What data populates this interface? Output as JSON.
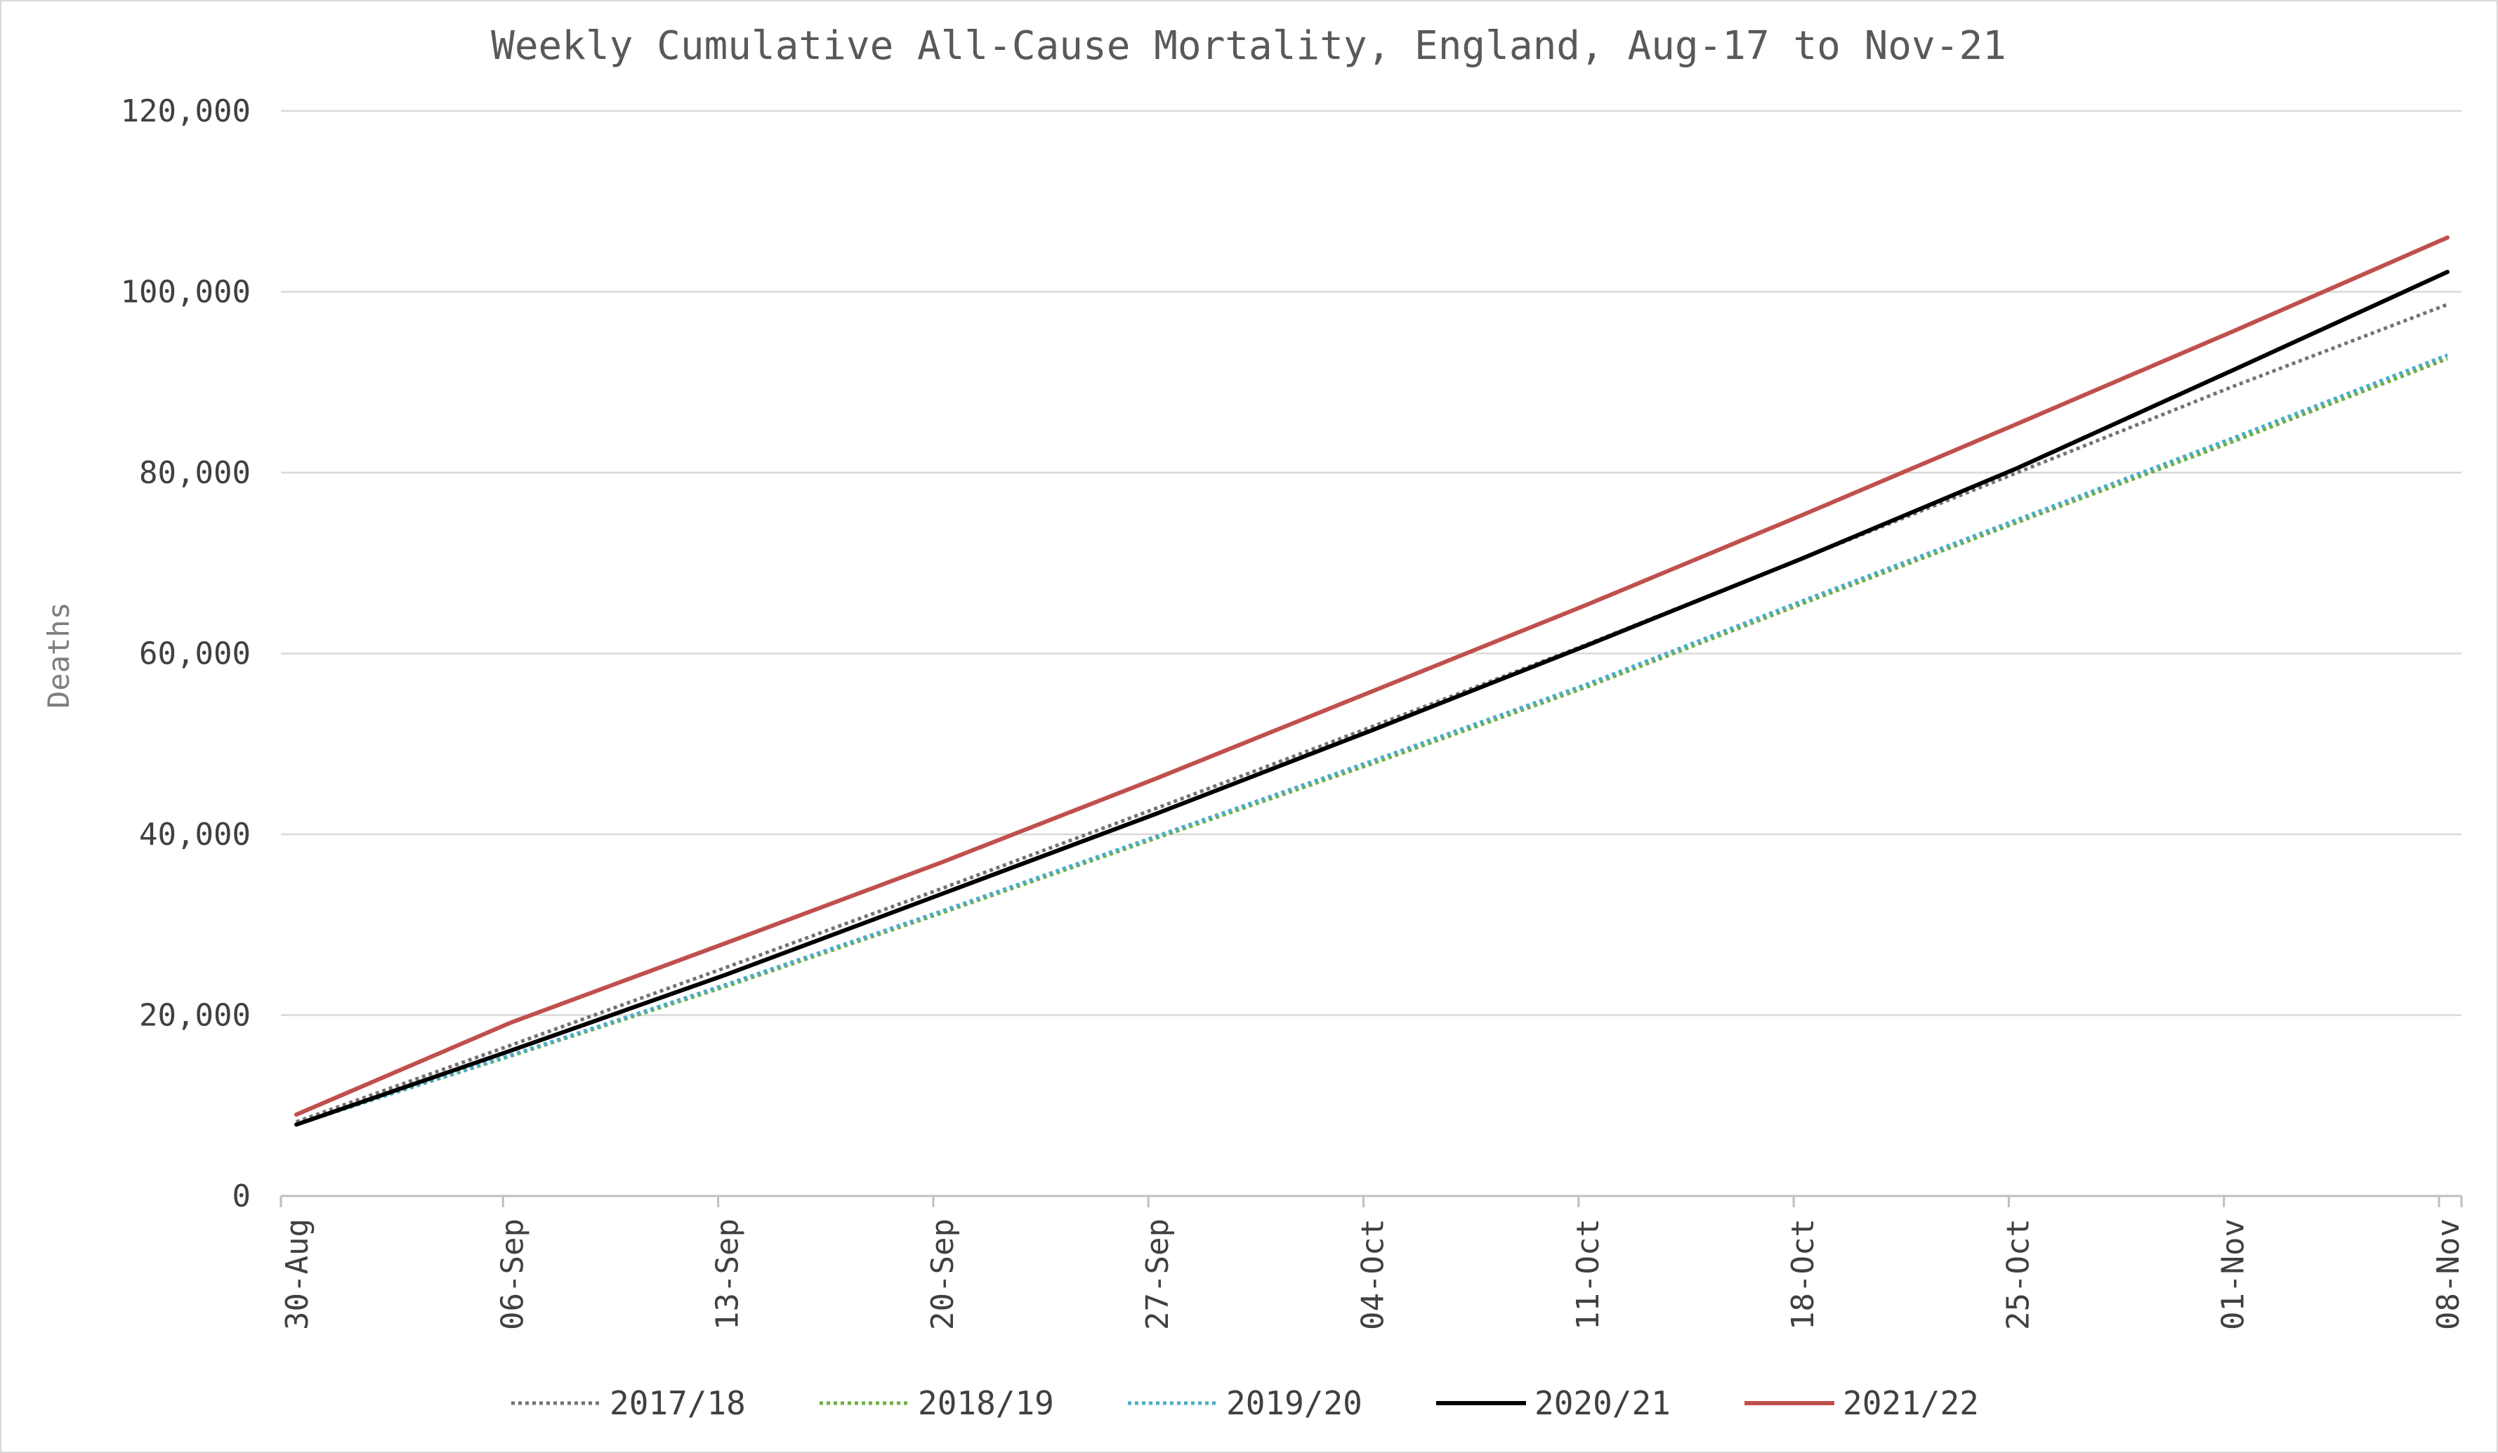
{
  "chart_data": {
    "type": "line",
    "title": "Weekly Cumulative All-Cause Mortality, England, Aug-17 to Nov-21",
    "ylabel": "Deaths",
    "xlabel": "",
    "ylim": [
      0,
      120000
    ],
    "yticks": [
      0,
      20000,
      40000,
      60000,
      80000,
      100000,
      120000
    ],
    "ytick_labels": [
      "0",
      "20,000",
      "40,000",
      "60,000",
      "80,000",
      "100,000",
      "120,000"
    ],
    "categories": [
      "30-Aug",
      "06-Sep",
      "13-Sep",
      "20-Sep",
      "27-Sep",
      "04-Oct",
      "11-Oct",
      "18-Oct",
      "25-Oct",
      "01-Nov",
      "08-Nov"
    ],
    "grid": "horizontal",
    "legend_position": "bottom",
    "series": [
      {
        "name": "2017/18",
        "color": "#767171",
        "style": "dotted",
        "values": [
          8200,
          16700,
          25300,
          34000,
          42900,
          51900,
          61000,
          70500,
          80000,
          89500,
          98600
        ]
      },
      {
        "name": "2018/19",
        "color": "#70ad47",
        "style": "dotted",
        "values": [
          8000,
          15500,
          23200,
          31300,
          39600,
          47800,
          56300,
          65500,
          74500,
          83400,
          92600
        ]
      },
      {
        "name": "2019/20",
        "color": "#4bacc6",
        "style": "dotted",
        "values": [
          7900,
          15600,
          23400,
          31500,
          39800,
          48100,
          56600,
          65800,
          74800,
          83800,
          93000
        ]
      },
      {
        "name": "2020/21",
        "color": "#000000",
        "style": "solid",
        "values": [
          7900,
          16100,
          24500,
          33400,
          42300,
          51500,
          60900,
          70500,
          80500,
          91300,
          102200
        ]
      },
      {
        "name": "2021/22",
        "color": "#c0504d",
        "style": "solid",
        "values": [
          9000,
          19200,
          28000,
          36900,
          46200,
          55800,
          65400,
          75300,
          85400,
          95600,
          106000
        ]
      }
    ]
  }
}
